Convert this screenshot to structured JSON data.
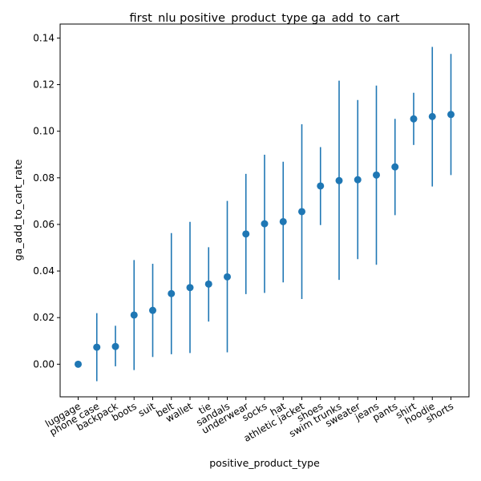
{
  "chart_data": {
    "type": "scatter",
    "title": "first_nlu positive_product_type ga_add_to_cart",
    "xlabel": "positive_product_type",
    "ylabel": "ga_add_to_cart_rate",
    "ylim": [
      -0.014,
      0.146
    ],
    "yticks": [
      0.0,
      0.02,
      0.04,
      0.06,
      0.08,
      0.1,
      0.12,
      0.14
    ],
    "ytick_labels": [
      "0.00",
      "0.02",
      "0.04",
      "0.06",
      "0.08",
      "0.10",
      "0.12",
      "0.14"
    ],
    "grid": false,
    "color": "#1f77b4",
    "points": [
      {
        "category": "luggage",
        "value": 0.0,
        "lower": 0.0,
        "upper": 0.0
      },
      {
        "category": "phone case",
        "value": 0.0073,
        "lower": -0.0073,
        "upper": 0.0219
      },
      {
        "category": "backpack",
        "value": 0.0076,
        "lower": -0.0009,
        "upper": 0.0165
      },
      {
        "category": "boots",
        "value": 0.0211,
        "lower": -0.0025,
        "upper": 0.0447
      },
      {
        "category": "suit",
        "value": 0.0231,
        "lower": 0.0031,
        "upper": 0.0431
      },
      {
        "category": "belt",
        "value": 0.0303,
        "lower": 0.0043,
        "upper": 0.0563
      },
      {
        "category": "wallet",
        "value": 0.0329,
        "lower": 0.0048,
        "upper": 0.0611
      },
      {
        "category": "tie",
        "value": 0.0344,
        "lower": 0.0183,
        "upper": 0.0502
      },
      {
        "category": "sandals",
        "value": 0.0375,
        "lower": 0.0051,
        "upper": 0.0701
      },
      {
        "category": "underwear",
        "value": 0.0559,
        "lower": 0.0301,
        "upper": 0.0817
      },
      {
        "category": "socks",
        "value": 0.0603,
        "lower": 0.0306,
        "upper": 0.0899
      },
      {
        "category": "hat",
        "value": 0.0612,
        "lower": 0.0351,
        "upper": 0.0869
      },
      {
        "category": "athletic jacket",
        "value": 0.0655,
        "lower": 0.028,
        "upper": 0.103
      },
      {
        "category": "shoes",
        "value": 0.0765,
        "lower": 0.0597,
        "upper": 0.0932
      },
      {
        "category": "swim trunks",
        "value": 0.0788,
        "lower": 0.0362,
        "upper": 0.1217
      },
      {
        "category": "sweater",
        "value": 0.0792,
        "lower": 0.0451,
        "upper": 0.1134
      },
      {
        "category": "jeans",
        "value": 0.0812,
        "lower": 0.0427,
        "upper": 0.1196
      },
      {
        "category": "pants",
        "value": 0.0847,
        "lower": 0.064,
        "upper": 0.1053
      },
      {
        "category": "shirt",
        "value": 0.1053,
        "lower": 0.0941,
        "upper": 0.1165
      },
      {
        "category": "hoodie",
        "value": 0.1063,
        "lower": 0.0763,
        "upper": 0.1362
      },
      {
        "category": "shorts",
        "value": 0.1072,
        "lower": 0.0812,
        "upper": 0.1332
      }
    ]
  }
}
